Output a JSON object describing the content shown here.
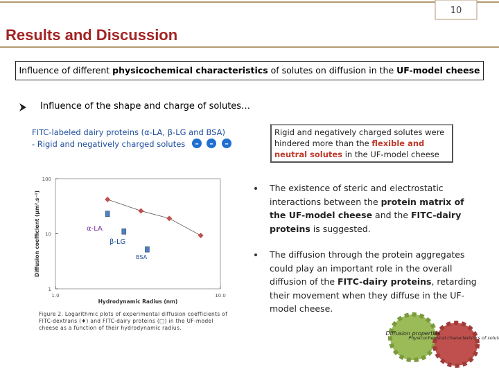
{
  "page_number": "10",
  "header": {
    "title": "Results and Discussion"
  },
  "subtitle": [
    {
      "text": "Influence of different ",
      "bold": false
    },
    {
      "text": "physicochemical characteristics",
      "bold": true
    },
    {
      "text": " of solutes on diffusion in the ",
      "bold": false
    },
    {
      "text": "UF-model cheese",
      "bold": true
    }
  ],
  "section": "Influence of the shape and charge of solutes…",
  "proteins_label": {
    "line1": "FITC-labeled dairy proteins (α-LA, β-LG and BSA)",
    "line2": "- Rigid and negatively charged solutes"
  },
  "charges": [
    "–",
    "–",
    "–"
  ],
  "callout": [
    {
      "text": "Rigid and negatively charged solutes were hindered more than the ",
      "bold": false,
      "red": false
    },
    {
      "text": "flexible and neutral solutes",
      "bold": false,
      "red": true
    },
    {
      "text": " in the UF-model cheese",
      "bold": false,
      "red": false
    }
  ],
  "bullets": [
    [
      {
        "text": "The existence of steric and electrostatic interactions between the ",
        "bold": false
      },
      {
        "text": "protein matrix of the UF-model cheese",
        "bold": true
      },
      {
        "text": " and the ",
        "bold": false
      },
      {
        "text": "FITC-dairy proteins",
        "bold": true
      },
      {
        "text": " is suggested.",
        "bold": false
      }
    ],
    [
      {
        "text": "The diffusion through the protein aggregates could play an important role in the overall diffusion of the ",
        "bold": false
      },
      {
        "text": "FITC-dairy proteins",
        "bold": true
      },
      {
        "text": ", retarding their movement when they diffuse in the UF-model cheese.",
        "bold": false
      }
    ]
  ],
  "chart_data": {
    "type": "scatter",
    "xlabel": "Hydrodynamic Radius (nm)",
    "ylabel": "Diffusion coefficient (μm².s⁻¹)",
    "xscale": "log",
    "yscale": "log",
    "xlim": [
      1,
      10
    ],
    "ylim": [
      1,
      100
    ],
    "xticks": [
      {
        "value": 1,
        "label": "1.0"
      },
      {
        "value": 10,
        "label": "10.0"
      }
    ],
    "yticks": [
      1,
      10,
      100
    ],
    "series": [
      {
        "color": "#c0504d",
        "marker": "diamond",
        "x": [
          2.07,
          3.3,
          4.9,
          7.6
        ],
        "values": [
          42,
          26,
          19,
          9.3
        ]
      },
      {
        "color": "#4f81bd",
        "marker": "square",
        "x": [
          2.07,
          2.6,
          3.6
        ],
        "values": [
          23,
          11,
          5.2
        ]
      }
    ],
    "annotations": [
      "α-LA",
      "β-LG",
      "BSA"
    ],
    "caption": "Figure 2. Logarithmic plots of experimental diffusion coefficients of FITC-dextrans (♦) and FITC-dairy proteins (□) in the UF-model cheese as a function of their hydrodynamic radius."
  },
  "diagram": {
    "labels": [
      "Diffusion properties",
      "Physicochemical characteristics of solutes"
    ]
  }
}
